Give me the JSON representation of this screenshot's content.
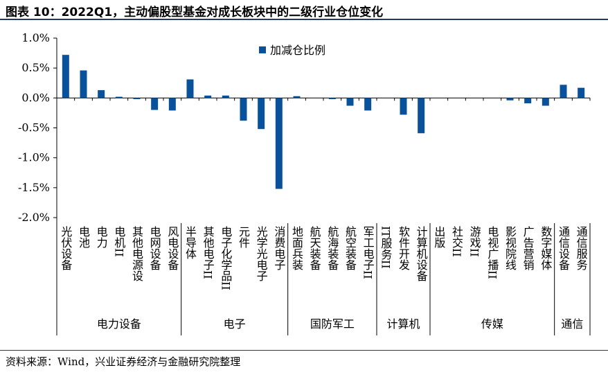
{
  "title": "图表 10：2022Q1，主动偏股型基金对成长板块中的二级行业仓位变化",
  "source": "资料来源：Wind，兴业证券经济与金融研究院整理",
  "colors": {
    "bar": "#08519c",
    "axis": "#000000",
    "rule": "#1f3864"
  },
  "chart_data": {
    "type": "bar",
    "ylim": [
      -2.0,
      1.0
    ],
    "yticks": [
      "1.0%",
      "0.5%",
      "0.0%",
      "-0.5%",
      "-1.0%",
      "-1.5%",
      "-2.0%"
    ],
    "ytick_values": [
      1.0,
      0.5,
      0.0,
      -0.5,
      -1.0,
      -1.5,
      -2.0
    ],
    "grid": false,
    "legend_position": "top-center",
    "series": [
      {
        "name": "加减仓比例",
        "values": [
          0.72,
          0.46,
          0.13,
          0.02,
          -0.02,
          -0.2,
          -0.21,
          0.31,
          0.04,
          0.04,
          -0.38,
          -0.52,
          -1.52,
          0.03,
          0.0,
          -0.02,
          -0.13,
          -0.21,
          0.0,
          -0.28,
          -0.59,
          0.0,
          0.0,
          0.0,
          0.0,
          -0.04,
          -0.09,
          -0.13,
          0.22,
          0.17
        ]
      }
    ],
    "categories": [
      "光伏设备",
      "电池",
      "电力",
      "电机II",
      "其他电源设",
      "电网设备",
      "风电设备",
      "半导体",
      "其他电子II",
      "电子化学品II",
      "元件",
      "光学光电子",
      "消费电子",
      "地面兵装",
      "航天装备",
      "航海装备",
      "航空装备",
      "军工电子II",
      "IT服务II",
      "软件开发",
      "计算机设备",
      "出版",
      "社交II",
      "游戏II",
      "电视广播II",
      "影视院线",
      "广告营销",
      "数字媒体",
      "通信设备",
      "通信服务"
    ],
    "groups": [
      {
        "label": "电力设备",
        "count": 7
      },
      {
        "label": "电子",
        "count": 6
      },
      {
        "label": "国防军工",
        "count": 5
      },
      {
        "label": "计算机",
        "count": 3
      },
      {
        "label": "传媒",
        "count": 7
      },
      {
        "label": "通信",
        "count": 2
      }
    ]
  }
}
